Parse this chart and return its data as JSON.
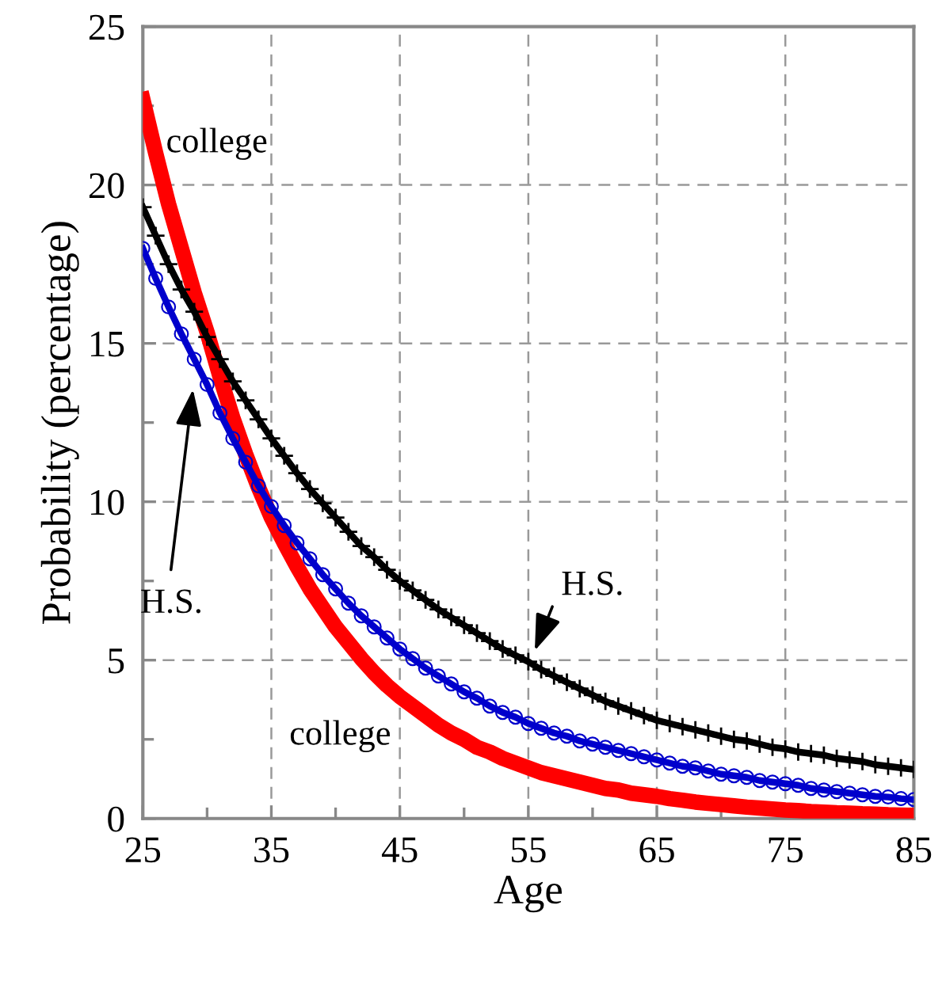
{
  "chart_data": {
    "type": "line",
    "xlabel": "Age",
    "ylabel": "Probability (percentage)",
    "x": [
      25,
      26,
      27,
      28,
      29,
      30,
      31,
      32,
      33,
      34,
      35,
      36,
      37,
      38,
      39,
      40,
      41,
      42,
      43,
      44,
      45,
      46,
      47,
      48,
      49,
      50,
      51,
      52,
      53,
      54,
      55,
      56,
      57,
      58,
      59,
      60,
      61,
      62,
      63,
      64,
      65,
      66,
      67,
      68,
      69,
      70,
      71,
      72,
      73,
      74,
      75,
      76,
      77,
      78,
      79,
      80,
      81,
      82,
      83,
      84,
      85
    ],
    "series": [
      {
        "color": "#ff0000",
        "marker": "none",
        "values": [
          22.7,
          21.0,
          19.4,
          18.0,
          16.6,
          15.35,
          13.95,
          12.65,
          11.5,
          10.45,
          9.5,
          8.7,
          7.95,
          7.25,
          6.65,
          6.05,
          5.55,
          5.05,
          4.6,
          4.2,
          3.85,
          3.55,
          3.25,
          2.95,
          2.7,
          2.5,
          2.25,
          2.1,
          1.9,
          1.75,
          1.6,
          1.45,
          1.35,
          1.25,
          1.15,
          1.05,
          0.95,
          0.9,
          0.8,
          0.75,
          0.7,
          0.63,
          0.58,
          0.52,
          0.48,
          0.44,
          0.4,
          0.36,
          0.33,
          0.3,
          0.27,
          0.25,
          0.22,
          0.2,
          0.18,
          0.17,
          0.15,
          0.14,
          0.12,
          0.11,
          0.1
        ]
      },
      {
        "color": "#000000",
        "marker": "cross",
        "values": [
          19.3,
          18.4,
          17.5,
          16.7,
          16.0,
          15.2,
          14.5,
          13.8,
          13.2,
          12.6,
          12.0,
          11.45,
          10.9,
          10.4,
          9.95,
          9.5,
          9.05,
          8.6,
          8.25,
          7.85,
          7.5,
          7.2,
          6.9,
          6.6,
          6.35,
          6.1,
          5.85,
          5.6,
          5.35,
          5.15,
          4.95,
          4.7,
          4.5,
          4.3,
          4.1,
          3.9,
          3.7,
          3.55,
          3.4,
          3.25,
          3.1,
          3.0,
          2.9,
          2.8,
          2.7,
          2.6,
          2.5,
          2.45,
          2.35,
          2.25,
          2.2,
          2.1,
          2.05,
          2.0,
          1.9,
          1.85,
          1.8,
          1.7,
          1.65,
          1.6,
          1.55
        ]
      },
      {
        "color": "#0000cc",
        "marker": "circle",
        "values": [
          18.0,
          17.05,
          16.15,
          15.3,
          14.5,
          13.7,
          12.8,
          12.0,
          11.25,
          10.5,
          9.85,
          9.25,
          8.7,
          8.2,
          7.7,
          7.25,
          6.8,
          6.4,
          6.05,
          5.7,
          5.35,
          5.05,
          4.75,
          4.5,
          4.25,
          4.0,
          3.8,
          3.55,
          3.35,
          3.2,
          3.0,
          2.85,
          2.7,
          2.6,
          2.45,
          2.35,
          2.25,
          2.15,
          2.05,
          1.95,
          1.85,
          1.75,
          1.65,
          1.6,
          1.5,
          1.4,
          1.35,
          1.3,
          1.2,
          1.15,
          1.1,
          1.05,
          0.95,
          0.9,
          0.85,
          0.8,
          0.75,
          0.7,
          0.68,
          0.63,
          0.6
        ]
      }
    ],
    "xlim": [
      25,
      85
    ],
    "xticks": [
      25,
      35,
      45,
      55,
      65,
      75,
      85
    ],
    "ylim": [
      0,
      25
    ],
    "yticks": [
      0,
      5,
      10,
      15,
      20,
      25
    ],
    "grid": true,
    "line_style": "solid",
    "annotations": [
      "college",
      "college",
      {
        "text": "H.S.",
        "x": 28.9,
        "y": 13.55
      },
      {
        "text": "H.S.",
        "x": 55.5,
        "y": 5.3
      }
    ]
  }
}
